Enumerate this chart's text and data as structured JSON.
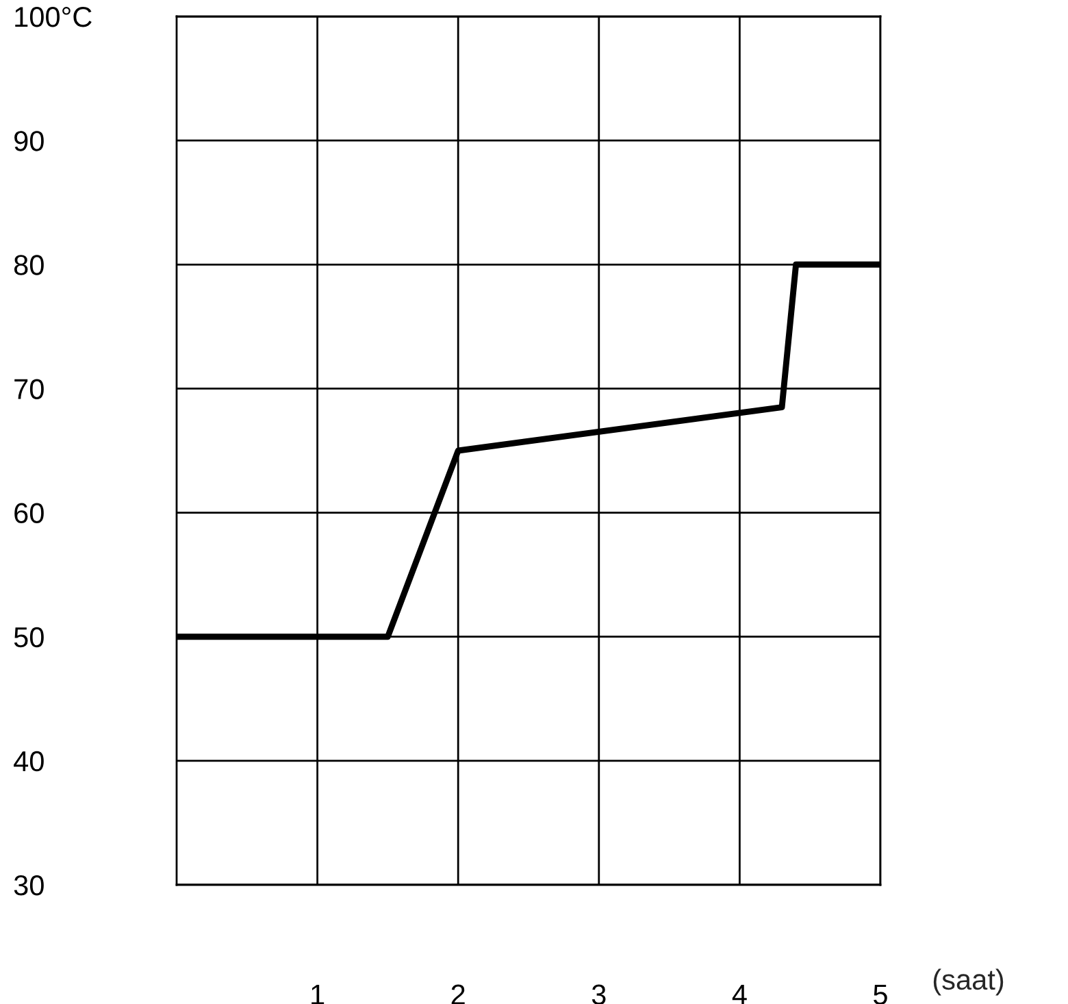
{
  "chart_data": {
    "type": "line",
    "xlabel": "(saat)",
    "x": [
      0,
      1.5,
      2,
      4.3,
      4.4,
      5
    ],
    "series": [
      {
        "color": "#000000",
        "values": [
          50,
          50,
          65,
          68.5,
          80,
          80
        ]
      }
    ],
    "xlim": [
      0,
      5
    ],
    "xticks": [
      1,
      2,
      3,
      4,
      5
    ],
    "ylim": [
      30,
      100
    ],
    "yticks": [
      30,
      40,
      50,
      60,
      70,
      80,
      90,
      {
        "value": 100,
        "label": "100°C"
      }
    ],
    "grid": true,
    "legend": false,
    "marker": "none",
    "line_style": "solid"
  }
}
